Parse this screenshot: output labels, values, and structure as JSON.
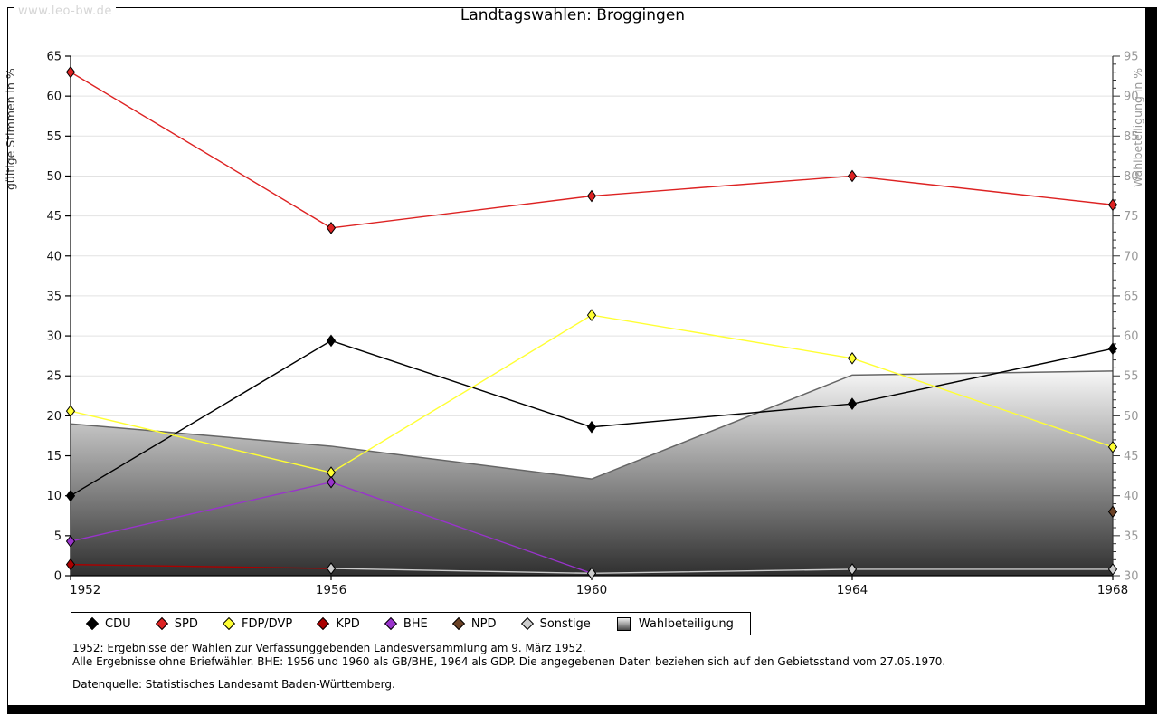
{
  "page": {
    "watermark": "www.leo-bw.de"
  },
  "chart_data": {
    "type": "line",
    "title": "Landtagswahlen: Broggingen",
    "x_categories": [
      1952,
      1956,
      1960,
      1964,
      1968
    ],
    "axes": {
      "left": {
        "label": "gültige Stimmen in %",
        "min": 0,
        "max": 65,
        "tick_step": 5
      },
      "right": {
        "label": "Wahlbeteiligung in %",
        "min": 30,
        "max": 95,
        "tick_step": 5,
        "minor_tick_step": 1
      }
    },
    "grid": true,
    "legend_position": "bottom",
    "series": [
      {
        "name": "CDU",
        "color": "#000000",
        "axis": "left",
        "points": [
          [
            1952,
            10.0
          ],
          [
            1956,
            29.4
          ],
          [
            1960,
            18.6
          ],
          [
            1964,
            21.5
          ],
          [
            1968,
            28.4
          ]
        ]
      },
      {
        "name": "SPD",
        "color": "#dd2222",
        "axis": "left",
        "points": [
          [
            1952,
            63.0
          ],
          [
            1956,
            43.5
          ],
          [
            1960,
            47.5
          ],
          [
            1964,
            50.0
          ],
          [
            1968,
            46.4
          ]
        ]
      },
      {
        "name": "FDP/DVP",
        "color": "#ffff33",
        "axis": "left",
        "points": [
          [
            1952,
            20.6
          ],
          [
            1956,
            12.9
          ],
          [
            1960,
            32.6
          ],
          [
            1964,
            27.2
          ],
          [
            1968,
            16.1
          ]
        ]
      },
      {
        "name": "KPD",
        "color": "#aa0000",
        "axis": "left",
        "points": [
          [
            1952,
            1.4
          ],
          [
            1956,
            0.9
          ]
        ]
      },
      {
        "name": "BHE",
        "color": "#9933cc",
        "axis": "left",
        "points": [
          [
            1952,
            4.3
          ],
          [
            1956,
            11.7
          ],
          [
            1960,
            0.3
          ]
        ]
      },
      {
        "name": "NPD",
        "color": "#6b4226",
        "axis": "left",
        "points": [
          [
            1968,
            8.0
          ]
        ]
      },
      {
        "name": "Sonstige",
        "color": "#cccccc",
        "axis": "left",
        "points": [
          [
            1956,
            0.9
          ],
          [
            1960,
            0.3
          ],
          [
            1964,
            0.8
          ],
          [
            1968,
            0.8
          ]
        ]
      }
    ],
    "area_series": {
      "name": "Wahlbeteiligung",
      "axis": "right",
      "stroke": "#666666",
      "fill_gradient": [
        "#f7f7f7",
        "#2f2f2f"
      ],
      "points": [
        [
          1952,
          49.0
        ],
        [
          1956,
          46.2
        ],
        [
          1960,
          42.1
        ],
        [
          1964,
          55.1
        ],
        [
          1968,
          55.6
        ]
      ]
    }
  },
  "footnotes": {
    "line1": "1952: Ergebnisse der Wahlen zur Verfassunggebenden Landesversammlung am 9. März 1952.",
    "line2": "Alle Ergebnisse ohne Briefwähler. BHE: 1956 und 1960 als GB/BHE, 1964 als GDP. Die angegebenen Daten beziehen sich auf den Gebietsstand vom 27.05.1970.",
    "source": "Datenquelle: Statistisches Landesamt Baden-Württemberg."
  }
}
